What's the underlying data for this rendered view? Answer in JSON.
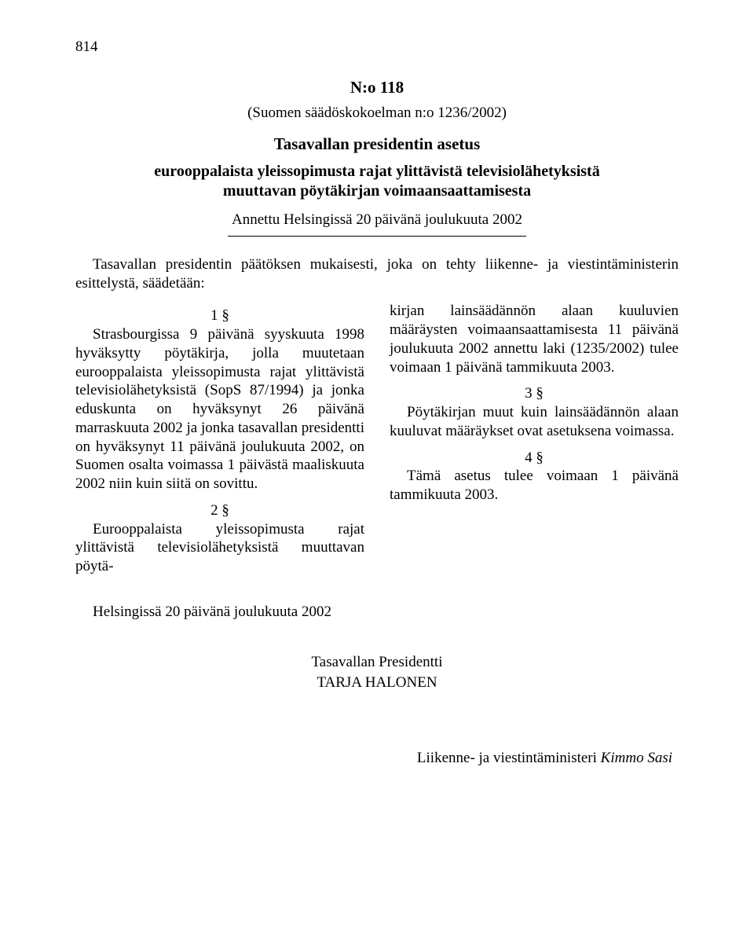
{
  "page_number": "814",
  "act_number": "N:o 118",
  "source_ref": "(Suomen säädöskokoelman n:o 1236/2002)",
  "title": "Tasavallan presidentin asetus",
  "subtitle": "eurooppalaista yleissopimusta rajat ylittävistä televisiolähetyksistä muuttavan pöytäkirjan voimaansaattamisesta",
  "given": "Annettu Helsingissä 20 päivänä joulukuuta 2002",
  "preamble": "Tasavallan presidentin päätöksen mukaisesti, joka on tehty liikenne- ja viestintäministerin esittelystä, säädetään:",
  "sections": {
    "s1": {
      "num": "1 §",
      "text": "Strasbourgissa 9 päivänä syyskuuta 1998 hyväksytty pöytäkirja, jolla muutetaan eurooppalaista yleissopimusta rajat ylittävistä televisiolähetyksistä (SopS 87/1994) ja jonka eduskunta on hyväksynyt 26 päivänä marraskuuta 2002 ja jonka tasavallan presidentti on hyväksynyt 11 päivänä joulukuuta 2002, on Suomen osalta voimassa 1 päivästä maaliskuuta 2002 niin kuin siitä on sovittu."
    },
    "s2": {
      "num": "2 §",
      "text_left": "Eurooppalaista yleissopimusta rajat ylittävistä televisiolähetyksistä muuttavan pöytä-",
      "text_right": "kirjan lainsäädännön alaan kuuluvien määräysten voimaansaattamisesta 11 päivänä joulukuuta 2002 annettu laki (1235/2002) tulee voimaan 1 päivänä tammikuuta 2003."
    },
    "s3": {
      "num": "3 §",
      "text": "Pöytäkirjan muut kuin lainsäädännön alaan kuuluvat määräykset ovat asetuksena voimassa."
    },
    "s4": {
      "num": "4 §",
      "text": "Tämä asetus tulee voimaan 1 päivänä tammikuuta 2003."
    }
  },
  "closing_date": "Helsingissä 20 päivänä joulukuuta 2002",
  "president_title": "Tasavallan Presidentti",
  "president_name": "TARJA HALONEN",
  "minister_title": "Liikenne- ja viestintäministeri ",
  "minister_name": "Kimmo Sasi"
}
